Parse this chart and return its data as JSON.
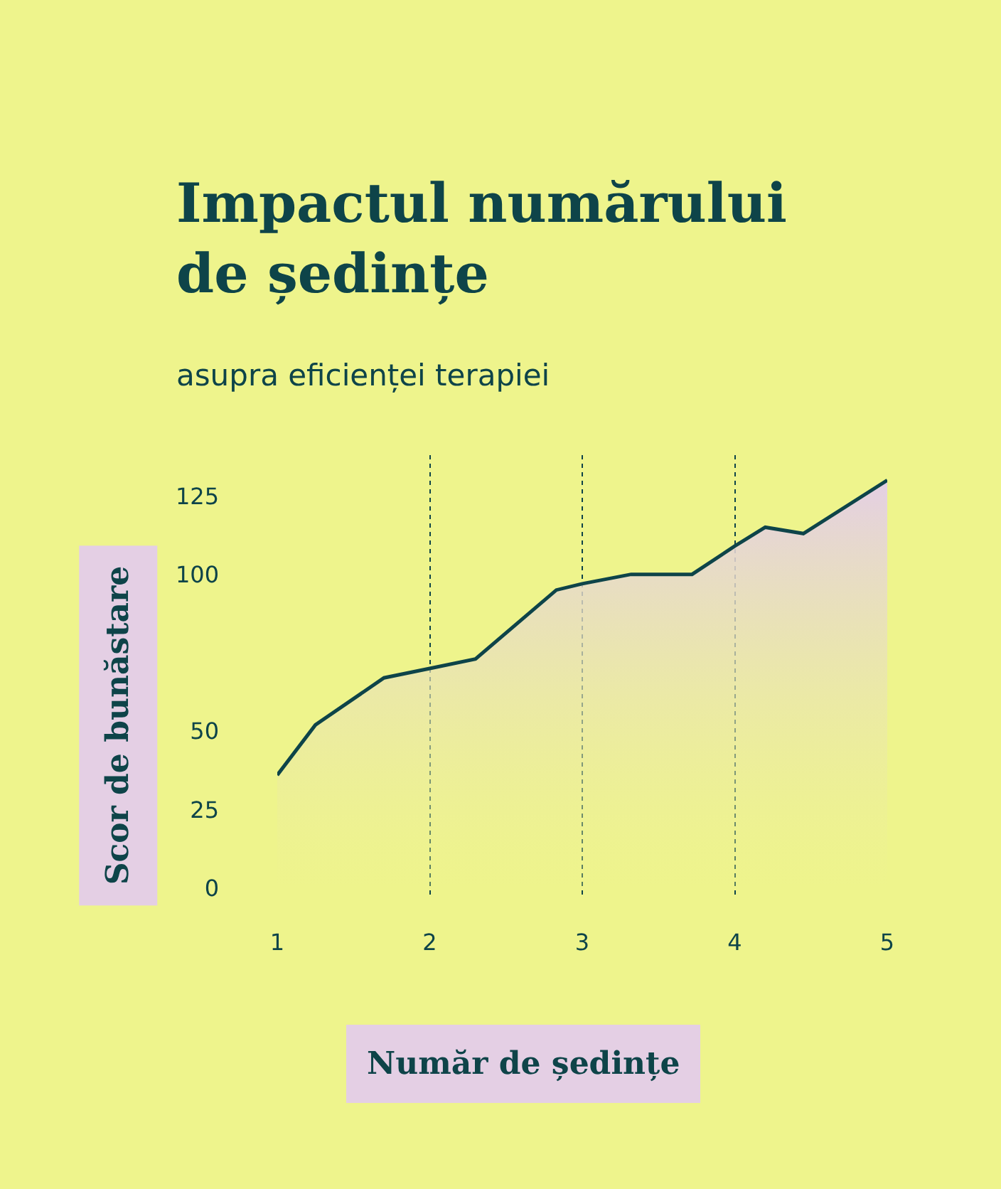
{
  "chart_data": {
    "type": "area",
    "title": "Impactul numărului de ședințe",
    "subtitle": "asupra eficienței terapiei",
    "xlabel": "Număr de ședințe",
    "ylabel": "Scor de bunăstare",
    "series": [
      {
        "color": "#0e4449",
        "x": [
          1,
          1.25,
          1.7,
          2,
          2.3,
          2.83,
          3,
          3.32,
          3.72,
          4,
          4.2,
          4.45,
          5
        ],
        "values": [
          36,
          52,
          67,
          70,
          73,
          95,
          97,
          100,
          100,
          109,
          115,
          113,
          130
        ]
      }
    ],
    "xlim": [
      1,
      5
    ],
    "xticks": [
      1,
      2,
      3,
      4,
      5
    ],
    "ylim": [
      -3,
      138
    ],
    "yticks": [
      0,
      25,
      50,
      100,
      125
    ],
    "grid": "x",
    "marker": "none",
    "line_style": "solid"
  }
}
